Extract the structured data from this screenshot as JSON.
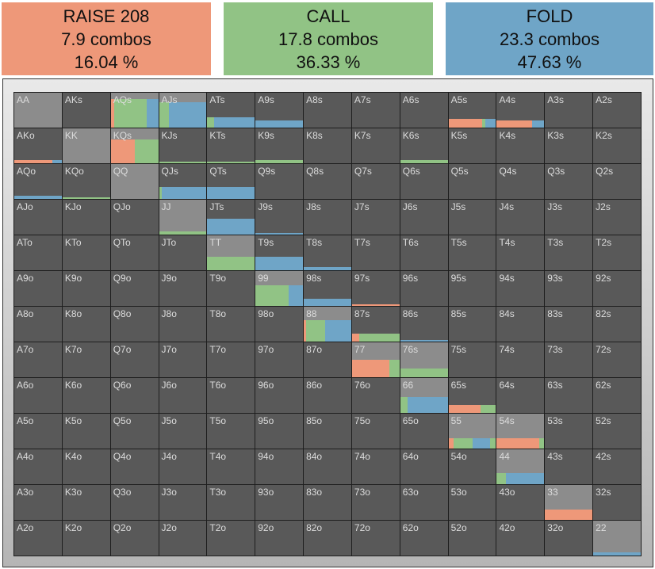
{
  "summary": {
    "raise": {
      "title": "RAISE 208",
      "combos": "7.9 combos",
      "pct": "16.04 %",
      "color": "#ee9879"
    },
    "call": {
      "title": "CALL",
      "combos": "17.8 combos",
      "pct": "36.33 %",
      "color": "#91c385"
    },
    "fold": {
      "title": "FOLD",
      "combos": "23.3 combos",
      "pct": "47.63 %",
      "color": "#6fa5c7"
    }
  },
  "grid_colors": {
    "cell": "#595959",
    "highlight": "#8c8c8c",
    "label": "#dcdcdc",
    "raise": "#ee9879",
    "call": "#91c385",
    "fold": "#6fa5c7"
  },
  "ranks": [
    "A",
    "K",
    "Q",
    "J",
    "T",
    "9",
    "8",
    "7",
    "6",
    "5",
    "4",
    "3",
    "2"
  ],
  "hands": {
    "AA": {
      "hl": 1.0,
      "bars": []
    },
    "AKs": {
      "hl": 0,
      "bars": []
    },
    "AQs": {
      "hl": 1.0,
      "bars": [
        [
          "raise",
          0,
          0.07,
          0.82
        ],
        [
          "call",
          0.07,
          0.76,
          0.82
        ],
        [
          "fold",
          0.76,
          1.0,
          0.82
        ]
      ]
    },
    "AJs": {
      "hl": 1.0,
      "bars": [
        [
          "call",
          0,
          0.2,
          0.72
        ],
        [
          "fold",
          0.2,
          1.0,
          0.72
        ]
      ]
    },
    "ATs": {
      "hl": 0,
      "bars": [
        [
          "call",
          0,
          0.15,
          0.3
        ],
        [
          "fold",
          0.15,
          1.0,
          0.3
        ]
      ]
    },
    "A9s": {
      "hl": 0,
      "bars": [
        [
          "fold",
          0,
          1.0,
          0.2
        ]
      ]
    },
    "A5s": {
      "hl": 0,
      "bars": [
        [
          "raise",
          0,
          0.7,
          0.25
        ],
        [
          "call",
          0.7,
          0.78,
          0.25
        ],
        [
          "fold",
          0.78,
          1.0,
          0.25
        ]
      ]
    },
    "A4s": {
      "hl": 0,
      "bars": [
        [
          "raise",
          0,
          0.75,
          0.2
        ],
        [
          "fold",
          0.75,
          1.0,
          0.2
        ]
      ]
    },
    "AKo": {
      "hl": 0,
      "bars": [
        [
          "raise",
          0,
          0.8,
          0.08
        ],
        [
          "fold",
          0.8,
          1.0,
          0.08
        ]
      ]
    },
    "KK": {
      "hl": 1.0,
      "bars": []
    },
    "KQs": {
      "hl": 1.0,
      "bars": [
        [
          "raise",
          0,
          0.5,
          0.68
        ],
        [
          "call",
          0.5,
          1.0,
          0.68
        ]
      ]
    },
    "KJs": {
      "hl": 0,
      "bars": [
        [
          "call",
          0,
          1.0,
          0.05
        ]
      ]
    },
    "KTs": {
      "hl": 0,
      "bars": [
        [
          "call",
          0,
          1.0,
          0.05
        ]
      ]
    },
    "K9s": {
      "hl": 0,
      "bars": [
        [
          "call",
          0,
          1.0,
          0.08
        ]
      ]
    },
    "K6s": {
      "hl": 0,
      "bars": [
        [
          "call",
          0,
          1.0,
          0.08
        ]
      ]
    },
    "AQo": {
      "hl": 0,
      "bars": [
        [
          "fold",
          0,
          1.0,
          0.08
        ]
      ]
    },
    "KQo": {
      "hl": 0,
      "bars": [
        [
          "call",
          0,
          1.0,
          0.05
        ]
      ]
    },
    "QQ": {
      "hl": 1.0,
      "bars": []
    },
    "QJs": {
      "hl": 0,
      "bars": [
        [
          "call",
          0,
          0.05,
          0.35
        ],
        [
          "fold",
          0.05,
          1.0,
          0.35
        ]
      ]
    },
    "QTs": {
      "hl": 0,
      "bars": [
        [
          "fold",
          0,
          1.0,
          0.35
        ]
      ]
    },
    "JJ": {
      "hl": 1.0,
      "bars": [
        [
          "call",
          0,
          1.0,
          0.08
        ]
      ]
    },
    "JTs": {
      "hl": 0,
      "bars": [
        [
          "fold",
          0,
          1.0,
          0.45
        ]
      ]
    },
    "J9s": {
      "hl": 0,
      "bars": [
        [
          "fold",
          0,
          1.0,
          0.05
        ]
      ]
    },
    "TT": {
      "hl": 1.0,
      "bars": [
        [
          "call",
          0,
          1.0,
          0.38
        ]
      ]
    },
    "T9s": {
      "hl": 0,
      "bars": [
        [
          "fold",
          0,
          1.0,
          0.38
        ]
      ]
    },
    "T8s": {
      "hl": 0,
      "bars": [
        [
          "fold",
          0,
          1.0,
          0.08
        ]
      ]
    },
    "99": {
      "hl": 1.0,
      "bars": [
        [
          "call",
          0,
          0.7,
          0.6
        ],
        [
          "fold",
          0.7,
          1.0,
          0.6
        ]
      ]
    },
    "98s": {
      "hl": 0,
      "bars": [
        [
          "fold",
          0,
          1.0,
          0.2
        ]
      ]
    },
    "97s": {
      "hl": 0,
      "bars": [
        [
          "raise",
          0,
          1.0,
          0.05
        ]
      ]
    },
    "88": {
      "hl": 1.0,
      "bars": [
        [
          "raise",
          0,
          0.05,
          0.62
        ],
        [
          "call",
          0.05,
          0.45,
          0.62
        ],
        [
          "fold",
          0.45,
          1.0,
          0.62
        ]
      ]
    },
    "87s": {
      "hl": 0,
      "bars": [
        [
          "raise",
          0,
          0.15,
          0.22
        ],
        [
          "call",
          0.15,
          1.0,
          0.22
        ]
      ]
    },
    "86s": {
      "hl": 0,
      "bars": [
        [
          "fold",
          0,
          1.0,
          0.05
        ]
      ]
    },
    "77": {
      "hl": 1.0,
      "bars": [
        [
          "raise",
          0,
          0.78,
          0.5
        ],
        [
          "call",
          0.78,
          1.0,
          0.5
        ]
      ]
    },
    "76s": {
      "hl": 1.0,
      "bars": [
        [
          "call",
          0,
          1.0,
          0.25
        ]
      ]
    },
    "66": {
      "hl": 1.0,
      "bars": [
        [
          "call",
          0,
          0.15,
          0.45
        ],
        [
          "fold",
          0.15,
          1.0,
          0.45
        ]
      ]
    },
    "65s": {
      "hl": 0,
      "bars": [
        [
          "raise",
          0,
          0.68,
          0.22
        ],
        [
          "call",
          0.68,
          1.0,
          0.22
        ]
      ]
    },
    "55": {
      "hl": 1.0,
      "bars": [
        [
          "raise",
          0,
          0.1,
          0.3
        ],
        [
          "call",
          0.1,
          0.5,
          0.3
        ],
        [
          "fold",
          0.5,
          0.88,
          0.3
        ],
        [
          "call",
          0.88,
          1.0,
          0.3
        ]
      ]
    },
    "54s": {
      "hl": 1.0,
      "bars": [
        [
          "raise",
          0,
          0.9,
          0.3
        ],
        [
          "call",
          0.9,
          1.0,
          0.3
        ]
      ]
    },
    "44": {
      "hl": 1.0,
      "bars": [
        [
          "call",
          0,
          0.2,
          0.32
        ],
        [
          "fold",
          0.2,
          1.0,
          0.32
        ]
      ]
    },
    "33": {
      "hl": 1.0,
      "bars": [
        [
          "raise",
          0,
          1.0,
          0.3
        ]
      ]
    },
    "22": {
      "hl": 1.0,
      "bars": [
        [
          "fold",
          0,
          1.0,
          0.1
        ]
      ]
    }
  }
}
